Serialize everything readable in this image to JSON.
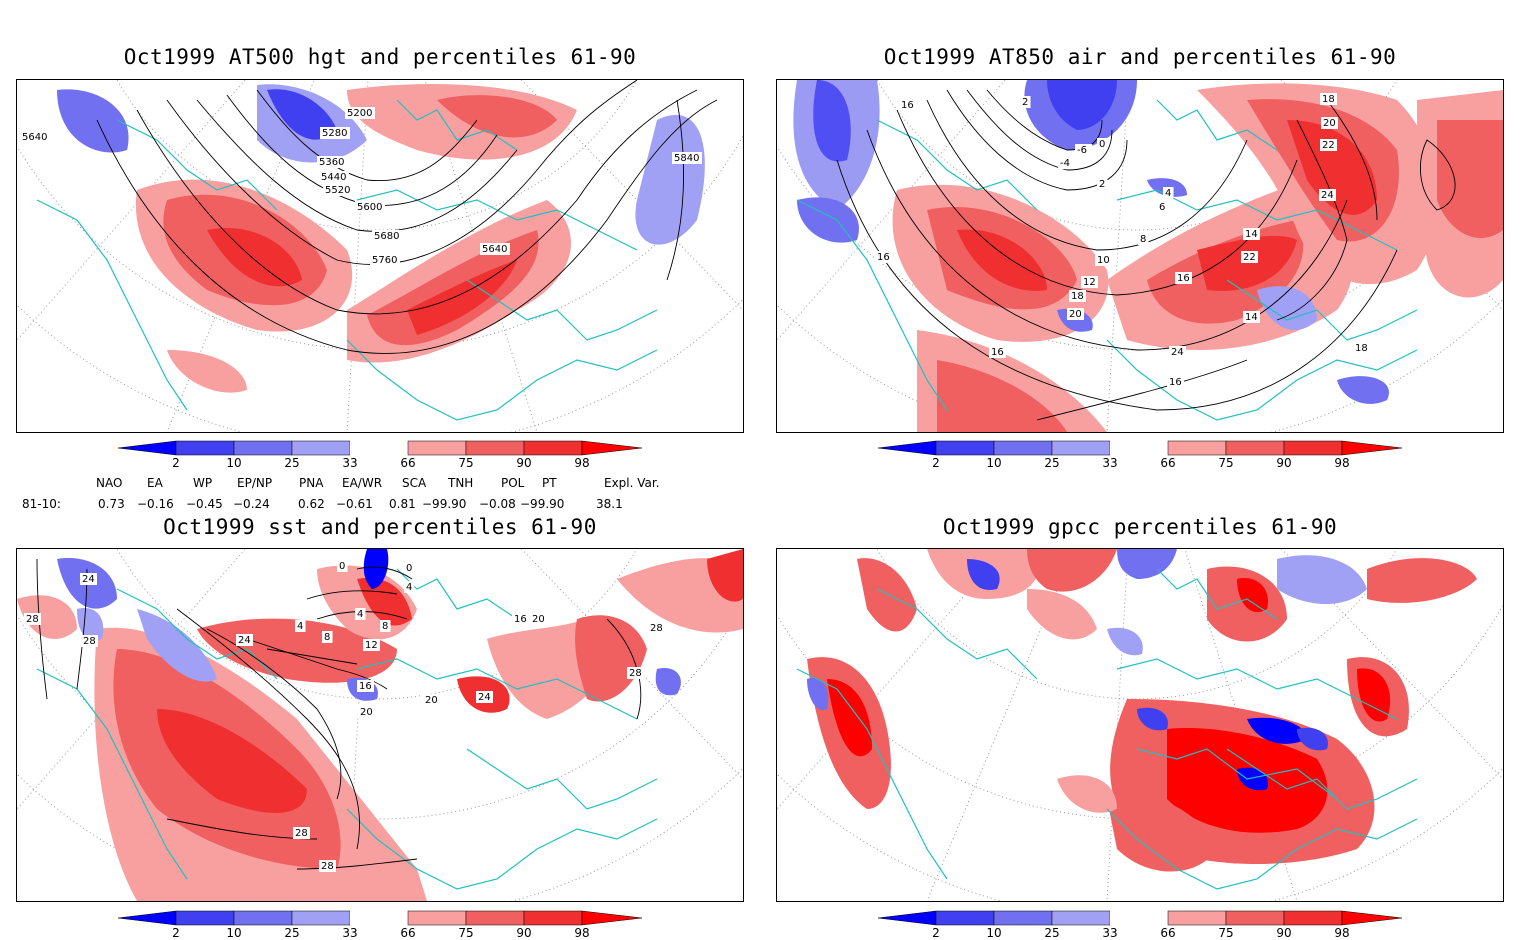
{
  "panels": [
    {
      "title": "Oct1999 AT500 hgt and percentiles 61-90",
      "contour_labels": [
        "5200",
        "5280",
        "5360",
        "5440",
        "5520",
        "5600",
        "5680",
        "5760",
        "5640",
        "5840",
        "5640"
      ]
    },
    {
      "title": "Oct1999 AT850 air and percentiles 61-90",
      "contour_labels": [
        "16",
        "18",
        "20",
        "22",
        "2",
        "-4",
        "-6",
        "0",
        "2",
        "4",
        "6",
        "8",
        "10",
        "12",
        "14",
        "16",
        "18",
        "20",
        "24",
        "16",
        "14",
        "16",
        "22",
        "18",
        "16",
        "24"
      ]
    },
    {
      "title": "Oct1999 sst and percentiles 61-90",
      "contour_labels": [
        "28",
        "24",
        "28",
        "24",
        "0",
        "0",
        "4",
        "4",
        "8",
        "4",
        "8",
        "12",
        "16",
        "20",
        "20",
        "24",
        "16",
        "20",
        "28",
        "28",
        "28",
        "28"
      ]
    },
    {
      "title": "Oct1999 gpcc percentiles 61-90",
      "contour_labels": []
    }
  ],
  "colorbar": {
    "ticks": [
      "2",
      "10",
      "25",
      "33",
      "66",
      "75",
      "90",
      "98"
    ],
    "colors": [
      "#0000ff",
      "#4040f0",
      "#7070f0",
      "#a0a0f4",
      "#ffffff",
      "#f8a0a0",
      "#f06060",
      "#f03030",
      "#ff0000"
    ]
  },
  "indices": {
    "headers": [
      "NAO",
      "EA",
      "WP",
      "EP/NP",
      "PNA",
      "EA/WR",
      "SCA",
      "TNH",
      "POL",
      "PT",
      "Expl. Var."
    ],
    "row_label": "81-10:",
    "values": [
      "0.73",
      "−0.16",
      "−0.45",
      "−0.24",
      "0.62",
      "−0.61",
      "0.81",
      "−99.90",
      "−0.08",
      "−99.90",
      "38.1"
    ]
  }
}
